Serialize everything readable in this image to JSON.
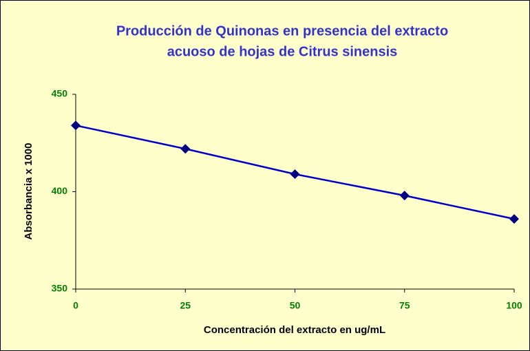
{
  "chart_data": {
    "type": "line",
    "title": [
      "Producción de Quinonas en presencia del extracto",
      "acuoso de hojas de Citrus sinensis"
    ],
    "x_label": "Concentración del extracto en ug/mL",
    "y_label": "Absorbancia x 1000",
    "x": [
      0,
      25,
      50,
      75,
      100
    ],
    "series": [
      {
        "name": "Absorbancia",
        "color": "#0000cc",
        "marker_color": "#000080",
        "values": [
          434,
          422,
          409,
          398,
          386
        ]
      }
    ],
    "xlim": [
      0,
      100
    ],
    "xticks": [
      0,
      25,
      50,
      75,
      100
    ],
    "ylim": [
      350,
      450
    ],
    "yticks": [
      350,
      400,
      450
    ],
    "grid": false,
    "background": "#ffffcc"
  }
}
